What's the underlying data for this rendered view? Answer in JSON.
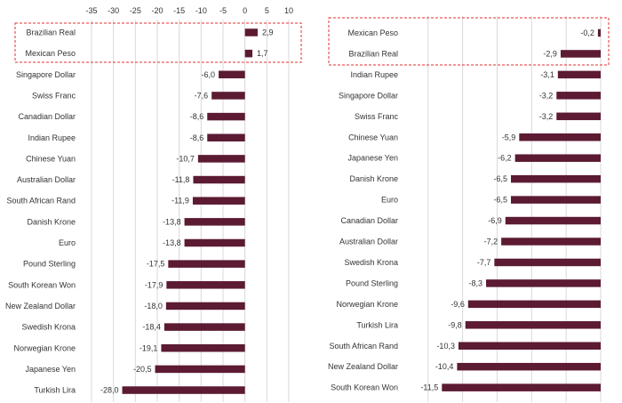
{
  "colors": {
    "bar": "#5c1a33",
    "highlight_border": "#e03030",
    "grid": "#d9d9d9",
    "text": "#333333"
  },
  "chart_data": [
    {
      "type": "bar",
      "orientation": "horizontal",
      "title": "",
      "xlabel": "",
      "ylabel": "",
      "xlim": [
        -35,
        10
      ],
      "xticks": [
        -35,
        -30,
        -25,
        -20,
        -15,
        -10,
        -5,
        0,
        5,
        10
      ],
      "grid": true,
      "highlighted_categories": [
        "Brazilian Real",
        "Mexican Peso"
      ],
      "categories": [
        "Brazilian Real",
        "Mexican Peso",
        "Singapore Dollar",
        "Swiss Franc",
        "Canadian Dollar",
        "Indian Rupee",
        "Chinese Yuan",
        "Australian Dollar",
        "South African Rand",
        "Danish Krone",
        "Euro",
        "Pound Sterling",
        "South Korean Won",
        "New Zealand Dollar",
        "Swedish Krona",
        "Norwegian Krone",
        "Japanese Yen",
        "Turkish Lira"
      ],
      "values": [
        2.9,
        1.7,
        -6.0,
        -7.6,
        -8.6,
        -8.6,
        -10.7,
        -11.8,
        -11.9,
        -13.8,
        -13.8,
        -17.5,
        -17.9,
        -18.0,
        -18.4,
        -19.1,
        -20.5,
        -28.0
      ],
      "value_labels": [
        "2,9",
        "1,7",
        "-6,0",
        "-7,6",
        "-8,6",
        "-8,6",
        "-10,7",
        "-11,8",
        "-11,9",
        "-13,8",
        "-13,8",
        "-17,5",
        "-17,9",
        "-18,0",
        "-18,4",
        "-19,1",
        "-20,5",
        "-28,0"
      ]
    },
    {
      "type": "bar",
      "orientation": "horizontal",
      "title": "",
      "xlabel": "",
      "ylabel": "",
      "xlim": [
        -13,
        0
      ],
      "grid": true,
      "highlighted_categories": [
        "Mexican Peso",
        "Brazilian Real"
      ],
      "categories": [
        "Mexican Peso",
        "Brazilian Real",
        "Indian Rupee",
        "Singapore Dollar",
        "Swiss Franc",
        "Chinese Yuan",
        "Japanese Yen",
        "Danish Krone",
        "Euro",
        "Canadian Dollar",
        "Australian Dollar",
        "Swedish Krona",
        "Pound Sterling",
        "Norwegian Krone",
        "Turkish Lira",
        "South African Rand",
        "New Zealand Dollar",
        "South Korean Won"
      ],
      "values": [
        -0.2,
        -2.9,
        -3.1,
        -3.2,
        -3.2,
        -5.9,
        -6.2,
        -6.5,
        -6.5,
        -6.9,
        -7.2,
        -7.7,
        -8.3,
        -9.6,
        -9.8,
        -10.3,
        -10.4,
        -11.5
      ],
      "value_labels": [
        "-0,2",
        "-2,9",
        "-3,1",
        "-3,2",
        "-3,2",
        "-5,9",
        "-6,2",
        "-6,5",
        "-6,5",
        "-6,9",
        "-7,2",
        "-7,7",
        "-8,3",
        "-9,6",
        "-9,8",
        "-10,3",
        "-10,4",
        "-11,5"
      ]
    }
  ]
}
